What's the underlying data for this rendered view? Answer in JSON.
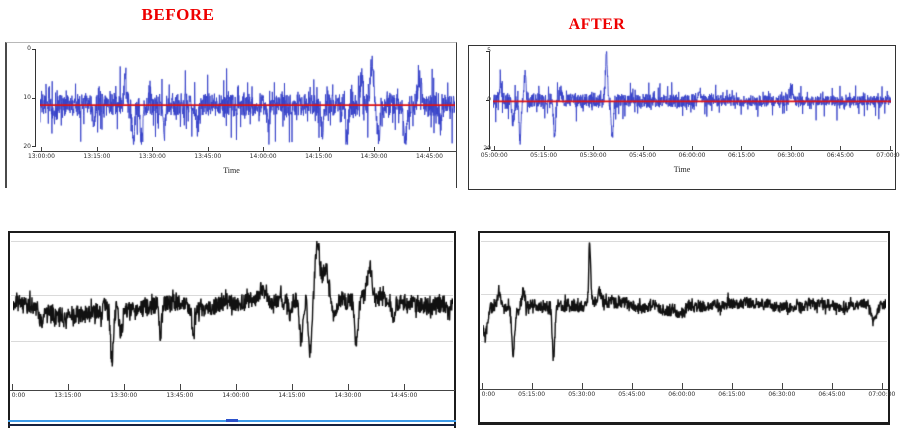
{
  "header": {
    "before_title": "BEFORE",
    "after_title": "AFTER",
    "title_color": "#ee0000"
  },
  "colors": {
    "signal_blue": "#3742c8",
    "baseline_red": "#e01212",
    "signal_black": "#111111",
    "gridline": "#dadada",
    "axis": "#333333",
    "box_border": "#1c1c1c",
    "bottom_edge_blue": "#3d9be9",
    "bottom_edge_navy": "#16213f"
  },
  "chart_data": [
    {
      "id": "before-raw",
      "type": "line",
      "panel": "top-left",
      "description": "Raw noisy signal before filtering, blue trace with red mean baseline",
      "line_color": "#3742c8",
      "baseline_color": "#e01212",
      "xlabel": "Time",
      "y_ticks": [
        "0",
        "10",
        "20"
      ],
      "x_ticks": [
        "13:00:00",
        "13:15:00",
        "13:30:00",
        "13:45:00",
        "14:00:00",
        "14:15:00",
        "14:30:00",
        "14:45:00"
      ],
      "grid": false,
      "signal": {
        "seed": 7,
        "n": 1600,
        "noise": 11,
        "spikiness": 30,
        "wander": 0,
        "taper": 0,
        "spikes": [
          {
            "x": 0.035,
            "a": -14,
            "w": 0.004
          },
          {
            "x": 0.13,
            "a": -20,
            "w": 0.003
          },
          {
            "x": 0.205,
            "a": 22,
            "w": 0.003
          },
          {
            "x": 0.225,
            "a": -38,
            "w": 0.003
          },
          {
            "x": 0.245,
            "a": -34,
            "w": 0.003
          },
          {
            "x": 0.3,
            "a": -26,
            "w": 0.003
          },
          {
            "x": 0.38,
            "a": -24,
            "w": 0.003
          },
          {
            "x": 0.55,
            "a": -22,
            "w": 0.003
          },
          {
            "x": 0.68,
            "a": -24,
            "w": 0.003
          },
          {
            "x": 0.74,
            "a": -30,
            "w": 0.003
          },
          {
            "x": 0.775,
            "a": 26,
            "w": 0.004
          },
          {
            "x": 0.8,
            "a": 44,
            "w": 0.004
          },
          {
            "x": 0.815,
            "a": -32,
            "w": 0.004
          },
          {
            "x": 0.88,
            "a": -38,
            "w": 0.004
          },
          {
            "x": 0.915,
            "a": 26,
            "w": 0.004
          },
          {
            "x": 0.965,
            "a": -20,
            "w": 0.003
          }
        ]
      }
    },
    {
      "id": "after-raw",
      "type": "line",
      "panel": "top-right",
      "description": "Signal after correction, blue trace with red mean baseline, noise reduced over time",
      "line_color": "#3742c8",
      "baseline_color": "#e01212",
      "xlabel": "Time",
      "y_ticks": [
        "5",
        "0",
        "20"
      ],
      "x_ticks": [
        "05:00:00",
        "05:15:00",
        "05:30:00",
        "05:45:00",
        "06:00:00",
        "06:15:00",
        "06:30:00",
        "06:45:00",
        "07:00:00"
      ],
      "grid": false,
      "signal": {
        "seed": 3,
        "n": 1600,
        "noise": 8,
        "spikiness": 16,
        "wander": 0,
        "taper": -0.45,
        "spikes": [
          {
            "x": 0.02,
            "a": 16,
            "w": 0.003
          },
          {
            "x": 0.05,
            "a": -22,
            "w": 0.003
          },
          {
            "x": 0.068,
            "a": -40,
            "w": 0.0025
          },
          {
            "x": 0.08,
            "a": 26,
            "w": 0.003
          },
          {
            "x": 0.155,
            "a": -36,
            "w": 0.0025
          },
          {
            "x": 0.17,
            "a": 14,
            "w": 0.003
          },
          {
            "x": 0.285,
            "a": 50,
            "w": 0.0025
          },
          {
            "x": 0.3,
            "a": -36,
            "w": 0.0025
          },
          {
            "x": 0.52,
            "a": 10,
            "w": 0.004
          },
          {
            "x": 0.75,
            "a": 12,
            "w": 0.004
          }
        ]
      }
    },
    {
      "id": "before-filtered",
      "type": "line",
      "panel": "bottom-left",
      "description": "Black trace of same period before correction, with horizontal gridlines",
      "line_color": "#111111",
      "baseline_color": null,
      "xlabel": null,
      "y_ticks": [],
      "x_ticks": [
        "0:00",
        "13:15:00",
        "13:30:00",
        "13:45:00",
        "14:00:00",
        "14:15:00",
        "14:30:00",
        "14:45:00"
      ],
      "grid": true,
      "signal": {
        "seed": 11,
        "n": 1300,
        "noise": 9,
        "spikiness": 8,
        "wander": 2.2,
        "taper": 0,
        "spikes": [
          {
            "x": 0.065,
            "a": -16,
            "w": 0.004
          },
          {
            "x": 0.21,
            "a": 14,
            "w": 0.004
          },
          {
            "x": 0.225,
            "a": -48,
            "w": 0.0035
          },
          {
            "x": 0.245,
            "a": -26,
            "w": 0.004
          },
          {
            "x": 0.335,
            "a": -30,
            "w": 0.003
          },
          {
            "x": 0.41,
            "a": -26,
            "w": 0.003
          },
          {
            "x": 0.57,
            "a": 12,
            "w": 0.01
          },
          {
            "x": 0.63,
            "a": -18,
            "w": 0.004
          },
          {
            "x": 0.655,
            "a": -40,
            "w": 0.004
          },
          {
            "x": 0.675,
            "a": -52,
            "w": 0.004
          },
          {
            "x": 0.692,
            "a": 55,
            "w": 0.005
          },
          {
            "x": 0.71,
            "a": 30,
            "w": 0.008
          },
          {
            "x": 0.73,
            "a": -18,
            "w": 0.005
          },
          {
            "x": 0.78,
            "a": -42,
            "w": 0.004
          },
          {
            "x": 0.81,
            "a": 28,
            "w": 0.005
          },
          {
            "x": 0.865,
            "a": -16,
            "w": 0.004
          },
          {
            "x": 0.99,
            "a": -12,
            "w": 0.004
          }
        ]
      }
    },
    {
      "id": "after-filtered",
      "type": "line",
      "panel": "bottom-right",
      "description": "Black trace of same period after correction, calmer with one large spike",
      "line_color": "#111111",
      "baseline_color": null,
      "xlabel": null,
      "y_ticks": [],
      "x_ticks": [
        "0:00",
        "05:15:00",
        "05:30:00",
        "05:45:00",
        "06:00:00",
        "06:15:00",
        "06:30:00",
        "06:45:00",
        "07:00:00"
      ],
      "grid": true,
      "signal": {
        "seed": 5,
        "n": 1300,
        "noise": 7,
        "spikiness": 6,
        "wander": 1.6,
        "taper": -0.3,
        "spikes": [
          {
            "x": 0.005,
            "a": -28,
            "w": 0.006
          },
          {
            "x": 0.04,
            "a": 12,
            "w": 0.005
          },
          {
            "x": 0.075,
            "a": -46,
            "w": 0.0035
          },
          {
            "x": 0.1,
            "a": 14,
            "w": 0.004
          },
          {
            "x": 0.175,
            "a": -50,
            "w": 0.003
          },
          {
            "x": 0.265,
            "a": 60,
            "w": 0.0025
          },
          {
            "x": 0.29,
            "a": 12,
            "w": 0.004
          },
          {
            "x": 0.97,
            "a": -14,
            "w": 0.006
          }
        ]
      }
    }
  ]
}
